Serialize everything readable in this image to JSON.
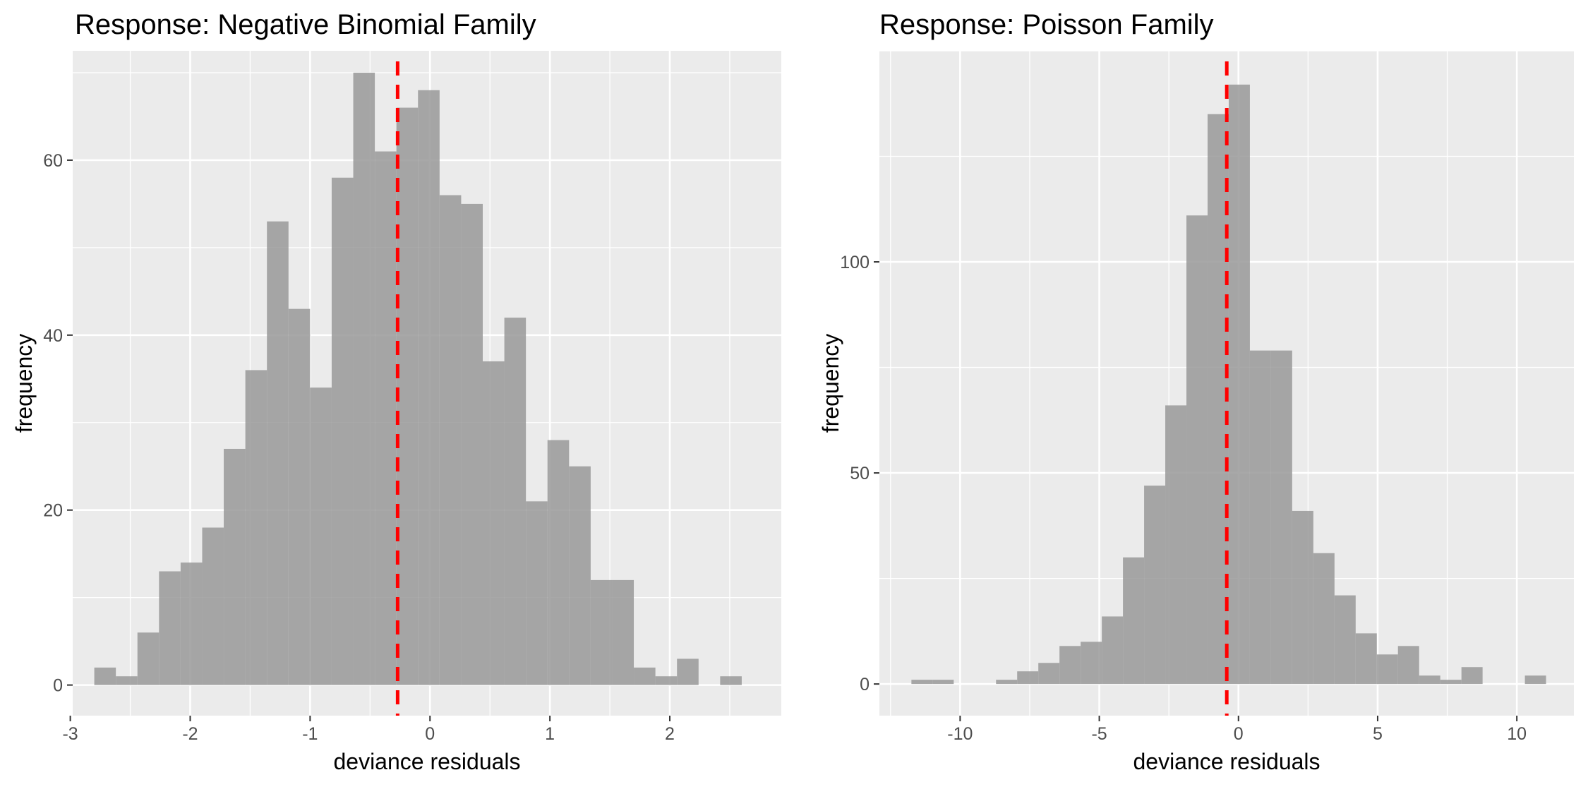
{
  "chart_data": [
    {
      "type": "histogram",
      "title": "Response: Negative Binomial Family",
      "xlabel": "deviance residuals",
      "ylabel": "frequency",
      "xlim": [
        -2.98,
        2.93
      ],
      "ylim": [
        -3.5,
        72.5
      ],
      "x_ticks": [
        -3,
        -2,
        -1,
        0,
        1,
        2
      ],
      "x_tick_labels": [
        "-3",
        "-2",
        "-1",
        "0",
        "1",
        "2"
      ],
      "y_ticks": [
        0,
        20,
        40,
        60
      ],
      "y_tick_labels": [
        "0",
        "20",
        "40",
        "60"
      ],
      "grid": true,
      "fill_color": "#999999",
      "mean_line": {
        "x": -0.27,
        "color": "#ff0000",
        "style": "dashed"
      },
      "bins": [
        {
          "x0": -2.8,
          "x1": -2.62,
          "count": 2
        },
        {
          "x0": -2.62,
          "x1": -2.44,
          "count": 1
        },
        {
          "x0": -2.44,
          "x1": -2.26,
          "count": 6
        },
        {
          "x0": -2.26,
          "x1": -2.08,
          "count": 13
        },
        {
          "x0": -2.08,
          "x1": -1.9,
          "count": 14
        },
        {
          "x0": -1.9,
          "x1": -1.72,
          "count": 18
        },
        {
          "x0": -1.72,
          "x1": -1.54,
          "count": 27
        },
        {
          "x0": -1.54,
          "x1": -1.36,
          "count": 36
        },
        {
          "x0": -1.36,
          "x1": -1.18,
          "count": 53
        },
        {
          "x0": -1.18,
          "x1": -1.0,
          "count": 43
        },
        {
          "x0": -1.0,
          "x1": -0.82,
          "count": 34
        },
        {
          "x0": -0.82,
          "x1": -0.64,
          "count": 58
        },
        {
          "x0": -0.64,
          "x1": -0.46,
          "count": 70
        },
        {
          "x0": -0.46,
          "x1": -0.28,
          "count": 61
        },
        {
          "x0": -0.28,
          "x1": -0.1,
          "count": 66
        },
        {
          "x0": -0.1,
          "x1": 0.08,
          "count": 68
        },
        {
          "x0": 0.08,
          "x1": 0.26,
          "count": 56
        },
        {
          "x0": 0.26,
          "x1": 0.44,
          "count": 55
        },
        {
          "x0": 0.44,
          "x1": 0.62,
          "count": 37
        },
        {
          "x0": 0.62,
          "x1": 0.8,
          "count": 42
        },
        {
          "x0": 0.8,
          "x1": 0.98,
          "count": 21
        },
        {
          "x0": 0.98,
          "x1": 1.16,
          "count": 28
        },
        {
          "x0": 1.16,
          "x1": 1.34,
          "count": 25
        },
        {
          "x0": 1.34,
          "x1": 1.52,
          "count": 12
        },
        {
          "x0": 1.52,
          "x1": 1.7,
          "count": 12
        },
        {
          "x0": 1.7,
          "x1": 1.88,
          "count": 2
        },
        {
          "x0": 1.88,
          "x1": 2.06,
          "count": 1
        },
        {
          "x0": 2.06,
          "x1": 2.24,
          "count": 3
        },
        {
          "x0": 2.24,
          "x1": 2.42,
          "count": 0
        },
        {
          "x0": 2.42,
          "x1": 2.6,
          "count": 1
        }
      ]
    },
    {
      "type": "histogram",
      "title": "Response: Poisson Family",
      "xlabel": "deviance residuals",
      "ylabel": "frequency",
      "xlim": [
        -12.9,
        12.05
      ],
      "ylim": [
        -7.5,
        150
      ],
      "x_ticks": [
        -10,
        -5,
        0,
        5,
        10
      ],
      "x_tick_labels": [
        "-10",
        "-5",
        "0",
        "5",
        "10"
      ],
      "y_ticks": [
        0,
        50,
        100
      ],
      "y_tick_labels": [
        "0",
        "50",
        "100"
      ],
      "grid": true,
      "fill_color": "#999999",
      "mean_line": {
        "x": -0.42,
        "color": "#ff0000",
        "style": "dashed"
      },
      "bins": [
        {
          "x0": -11.75,
          "x1": -10.99,
          "count": 1
        },
        {
          "x0": -10.99,
          "x1": -10.23,
          "count": 1
        },
        {
          "x0": -10.23,
          "x1": -9.47,
          "count": 0
        },
        {
          "x0": -9.47,
          "x1": -8.71,
          "count": 0
        },
        {
          "x0": -8.71,
          "x1": -7.95,
          "count": 1
        },
        {
          "x0": -7.95,
          "x1": -7.19,
          "count": 3
        },
        {
          "x0": -7.19,
          "x1": -6.43,
          "count": 5
        },
        {
          "x0": -6.43,
          "x1": -5.67,
          "count": 9
        },
        {
          "x0": -5.67,
          "x1": -4.91,
          "count": 10
        },
        {
          "x0": -4.91,
          "x1": -4.15,
          "count": 16
        },
        {
          "x0": -4.15,
          "x1": -3.39,
          "count": 30
        },
        {
          "x0": -3.39,
          "x1": -2.63,
          "count": 47
        },
        {
          "x0": -2.63,
          "x1": -1.87,
          "count": 66
        },
        {
          "x0": -1.87,
          "x1": -1.11,
          "count": 111
        },
        {
          "x0": -1.11,
          "x1": -0.35,
          "count": 135
        },
        {
          "x0": -0.35,
          "x1": 0.41,
          "count": 142
        },
        {
          "x0": 0.41,
          "x1": 1.17,
          "count": 79
        },
        {
          "x0": 1.17,
          "x1": 1.93,
          "count": 79
        },
        {
          "x0": 1.93,
          "x1": 2.69,
          "count": 41
        },
        {
          "x0": 2.69,
          "x1": 3.45,
          "count": 31
        },
        {
          "x0": 3.45,
          "x1": 4.21,
          "count": 21
        },
        {
          "x0": 4.21,
          "x1": 4.97,
          "count": 12
        },
        {
          "x0": 4.97,
          "x1": 5.73,
          "count": 7
        },
        {
          "x0": 5.73,
          "x1": 6.49,
          "count": 9
        },
        {
          "x0": 6.49,
          "x1": 7.25,
          "count": 2
        },
        {
          "x0": 7.25,
          "x1": 8.01,
          "count": 1
        },
        {
          "x0": 8.01,
          "x1": 8.77,
          "count": 4
        },
        {
          "x0": 8.77,
          "x1": 9.53,
          "count": 0
        },
        {
          "x0": 9.53,
          "x1": 10.29,
          "count": 0
        },
        {
          "x0": 10.29,
          "x1": 11.05,
          "count": 2
        }
      ]
    }
  ]
}
